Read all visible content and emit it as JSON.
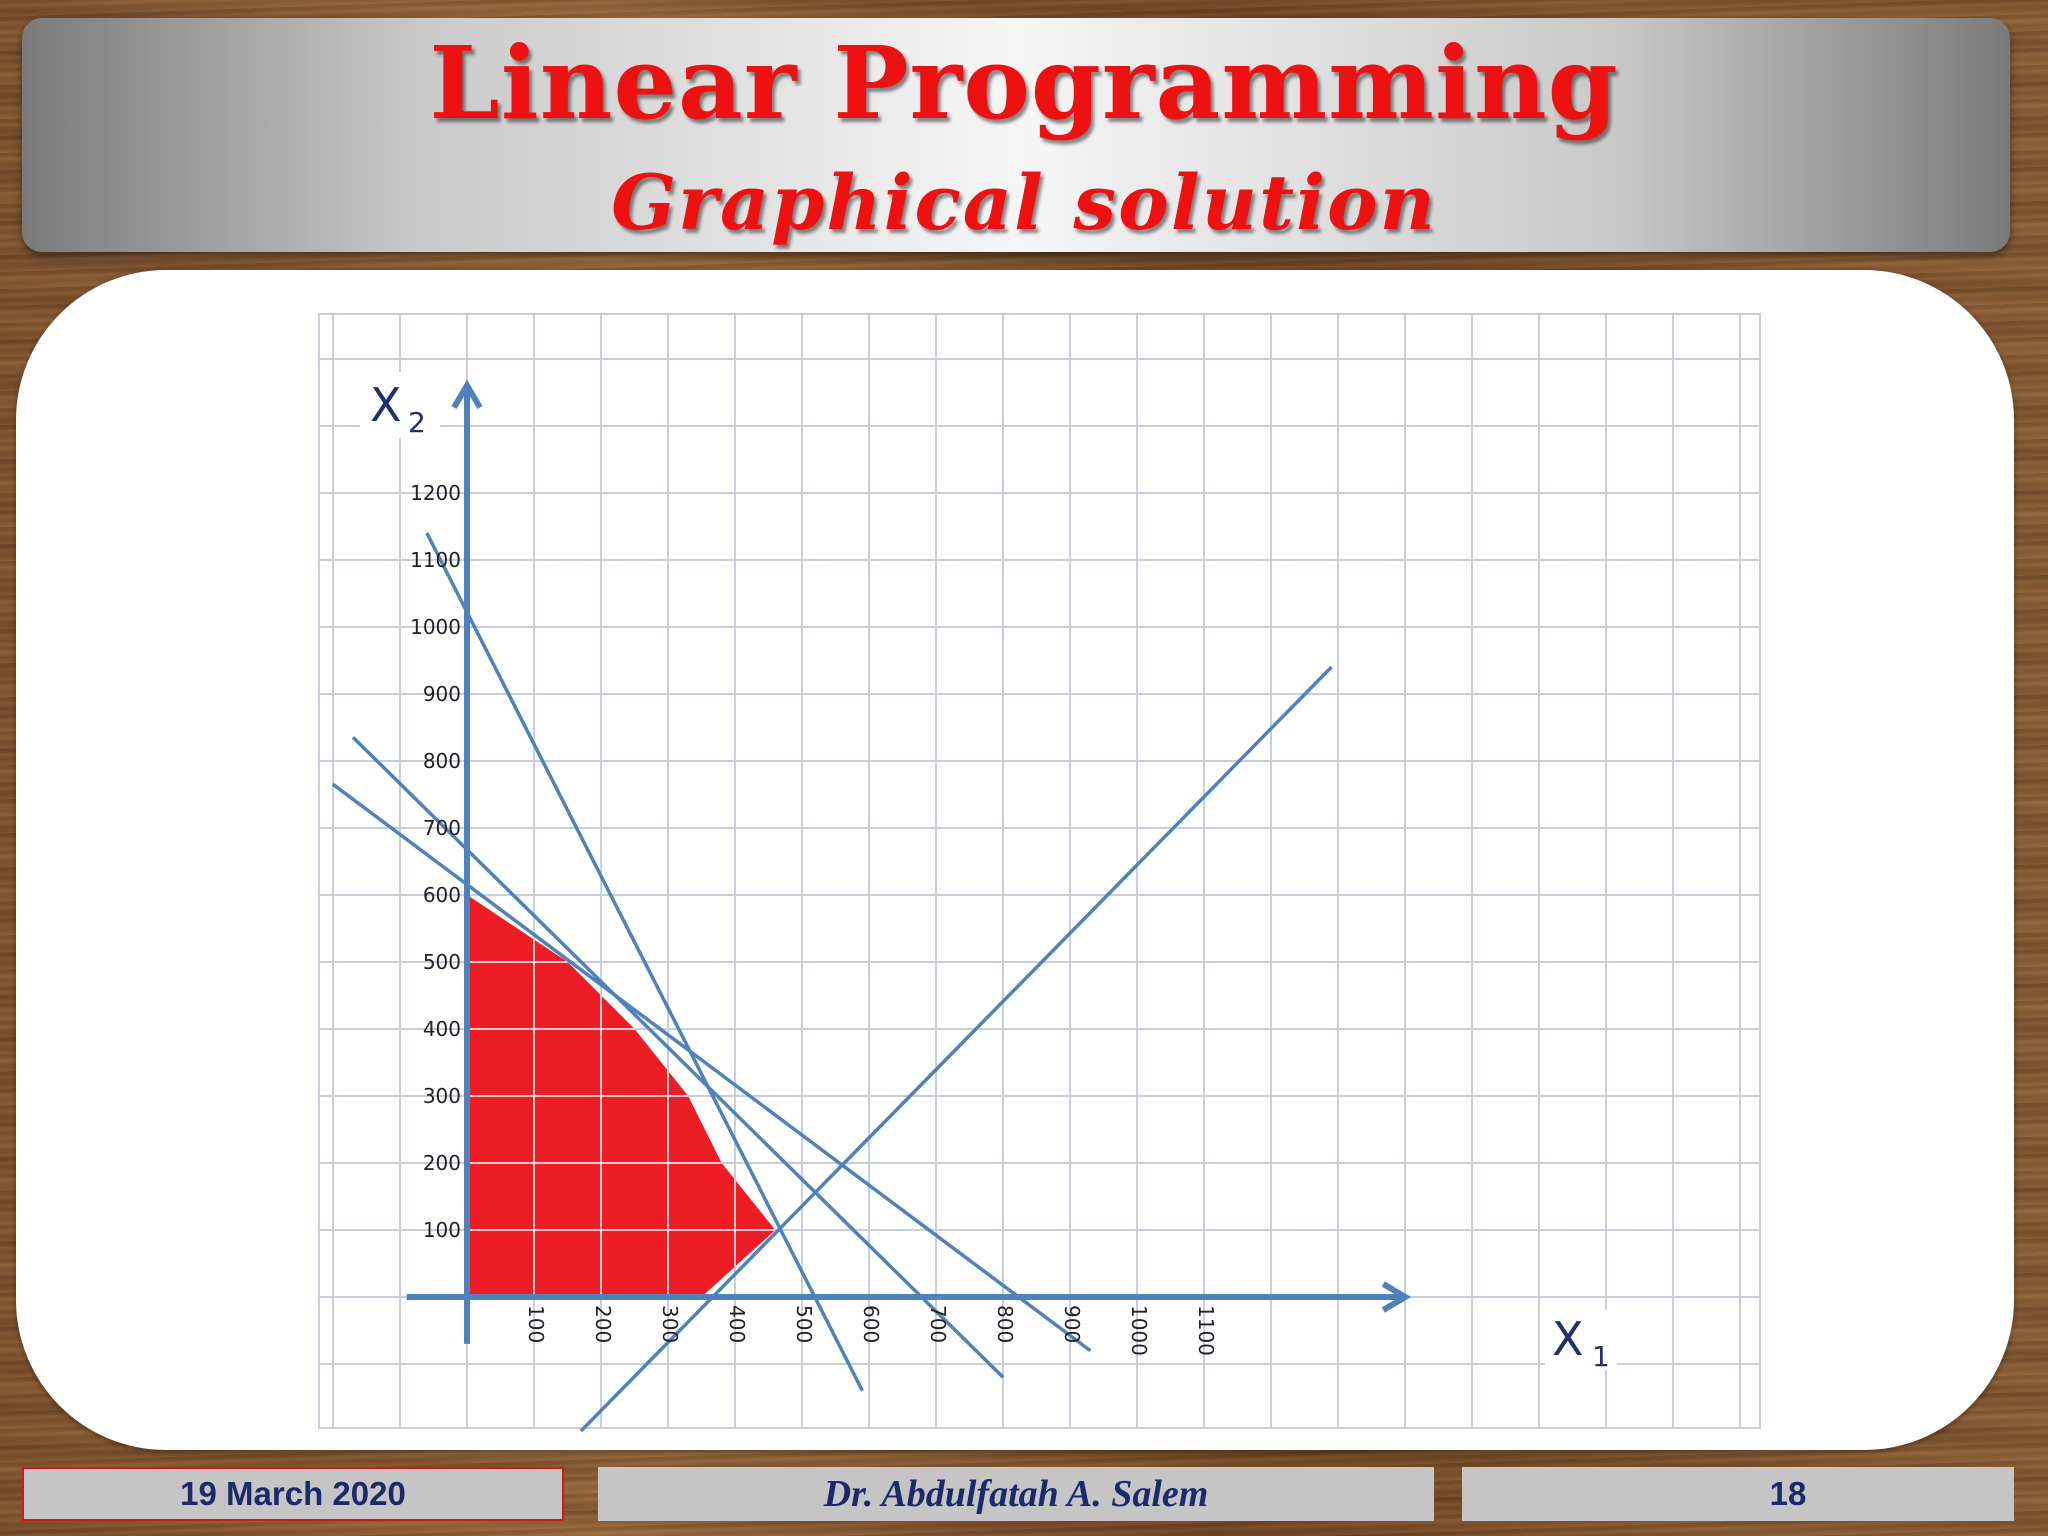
{
  "slide": {
    "title": "Linear Programming",
    "subtitle": "Graphical solution",
    "footer": {
      "date": "19 March 2020",
      "author": "Dr. Abdulfatah A. Salem",
      "page": "18"
    }
  },
  "colors": {
    "title": "#ee1111",
    "line": "#4f81bd",
    "feasible_region": "#ee1c25",
    "grid": "#c8cde0",
    "footer_text": "#1b2a6a"
  },
  "chart_data": {
    "type": "line",
    "title": "",
    "xlabel": "X",
    "xlabel_subscript": "1",
    "ylabel": "X",
    "ylabel_subscript": "2",
    "xlim": [
      -120,
      1900
    ],
    "ylim": [
      -200,
      1500
    ],
    "x_ticks": [
      "100",
      "200",
      "300",
      "400",
      "500",
      "600",
      "700",
      "800",
      "900",
      "1000",
      "1100"
    ],
    "y_ticks": [
      "100",
      "200",
      "300",
      "400",
      "500",
      "600",
      "700",
      "800",
      "900",
      "1000",
      "1100",
      "1200"
    ],
    "grid": true,
    "series": [
      {
        "points": [
          [
            -60,
            1140
          ],
          [
            590,
            -140
          ]
        ]
      },
      {
        "points": [
          [
            -170,
            835
          ],
          [
            800,
            -120
          ]
        ]
      },
      {
        "points": [
          [
            -200,
            765
          ],
          [
            930,
            -80
          ]
        ]
      },
      {
        "points": [
          [
            170,
            -200
          ],
          [
            1290,
            940
          ]
        ]
      }
    ],
    "feasible_region": [
      [
        0,
        0
      ],
      [
        0,
        600
      ],
      [
        150,
        500
      ],
      [
        250,
        400
      ],
      [
        330,
        300
      ],
      [
        380,
        200
      ],
      [
        460,
        100
      ],
      [
        350,
        0
      ]
    ]
  }
}
